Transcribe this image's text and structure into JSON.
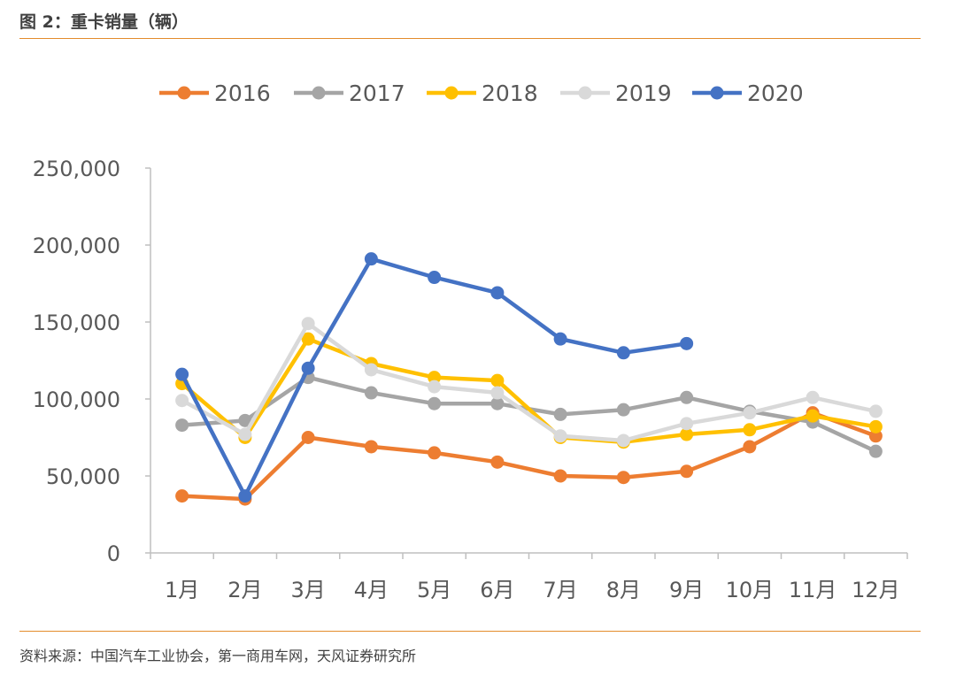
{
  "figure_title": "图 2：重卡销量（辆）",
  "source": "资料来源：中国汽车工业协会，第一商用车网，天风证券研究所",
  "chart_data": {
    "type": "line",
    "categories": [
      "1月",
      "2月",
      "3月",
      "4月",
      "5月",
      "6月",
      "7月",
      "8月",
      "9月",
      "10月",
      "11月",
      "12月"
    ],
    "ylim": [
      0,
      250000
    ],
    "yticks": [
      0,
      50000,
      100000,
      150000,
      200000,
      250000
    ],
    "ytick_labels": [
      "0",
      "50,000",
      "100,000",
      "150,000",
      "200,000",
      "250,000"
    ],
    "legend_position": "top",
    "grid": false,
    "series": [
      {
        "name": "2016",
        "color": "#ED7D31",
        "values": [
          37000,
          35000,
          75000,
          69000,
          65000,
          59000,
          50000,
          49000,
          53000,
          69000,
          91000,
          76000
        ]
      },
      {
        "name": "2017",
        "color": "#A5A5A5",
        "values": [
          83000,
          86000,
          114000,
          104000,
          97000,
          97000,
          90000,
          93000,
          101000,
          92000,
          85000,
          66000
        ]
      },
      {
        "name": "2018",
        "color": "#FFC000",
        "values": [
          110000,
          75000,
          139000,
          123000,
          114000,
          112000,
          75000,
          72000,
          77000,
          80000,
          89000,
          82000
        ]
      },
      {
        "name": "2019",
        "color": "#D9D9D9",
        "values": [
          99000,
          77000,
          149000,
          119000,
          108000,
          104000,
          76000,
          73000,
          84000,
          91000,
          101000,
          92000
        ]
      },
      {
        "name": "2020",
        "color": "#4472C4",
        "values": [
          116000,
          37000,
          120000,
          191000,
          179000,
          169000,
          139000,
          130000,
          136000,
          null,
          null,
          null
        ]
      }
    ]
  }
}
